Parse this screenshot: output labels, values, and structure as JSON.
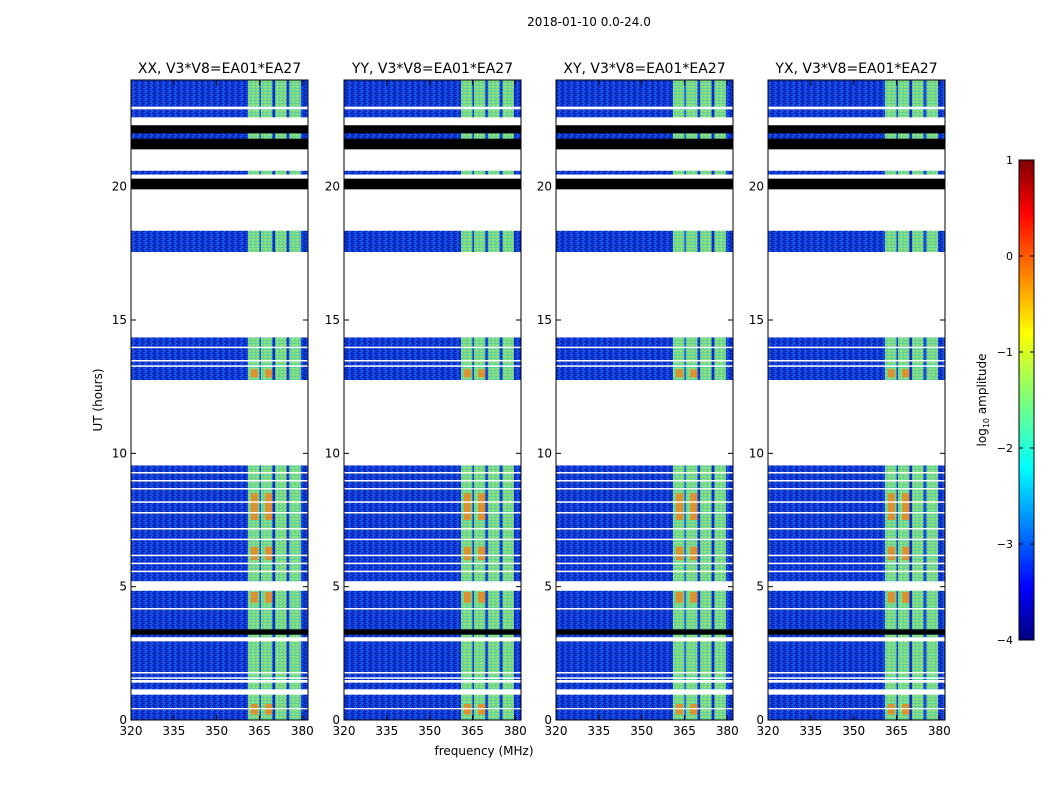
{
  "chart_data": {
    "type": "heatmap",
    "title": "2018-01-10 0.0-24.0",
    "xlabel": "frequency (MHz)",
    "ylabel": "UT (hours)",
    "xlim": [
      320,
      382
    ],
    "ylim": [
      0,
      24
    ],
    "xticks": [
      320,
      335,
      350,
      365,
      380
    ],
    "yticks": [
      0,
      5,
      10,
      15,
      20
    ],
    "panels": [
      {
        "title": "XX, V3*V8=EA01*EA27",
        "pol": "XX"
      },
      {
        "title": "YY, V3*V8=EA01*EA27",
        "pol": "YY"
      },
      {
        "title": "XY, V3*V8=EA01*EA27",
        "pol": "XY"
      },
      {
        "title": "YX, V3*V8=EA01*EA27",
        "pol": "YX"
      }
    ],
    "colorbar": {
      "label": "log10 amplitude",
      "label_base": "log",
      "label_sub": "10",
      "label_rest": " amplitude",
      "range": [
        -4,
        1
      ],
      "ticks": [
        1,
        0,
        -1,
        -2,
        -3,
        -4
      ],
      "colormap": "jet"
    },
    "data_blocks_ut_hours": [
      [
        0,
        3.0
      ],
      [
        3.1,
        4.85
      ],
      [
        5.2,
        9.55
      ],
      [
        12.75,
        14.35
      ],
      [
        17.55,
        18.35
      ],
      [
        20.45,
        20.6
      ],
      [
        21.45,
        24.0
      ]
    ],
    "flagged_black_ut_hours": [
      [
        3.2,
        3.4
      ],
      [
        19.9,
        20.3
      ],
      [
        21.4,
        21.8
      ],
      [
        22.0,
        22.3
      ]
    ],
    "white_gaps_ut_hours": [
      [
        0.4,
        0.45
      ],
      [
        0.95,
        1.15
      ],
      [
        1.4,
        1.5
      ],
      [
        2.95,
        3.1
      ],
      [
        4.85,
        5.2
      ],
      [
        9.55,
        12.75
      ],
      [
        14.35,
        17.55
      ],
      [
        18.35,
        19.9
      ],
      [
        20.3,
        20.45
      ],
      [
        20.6,
        21.4
      ],
      [
        22.3,
        22.6
      ],
      [
        22.9,
        23.0
      ]
    ],
    "rfi_bands_mhz": [
      [
        361,
        365,
        "bright"
      ],
      [
        365.5,
        369.5,
        "bright"
      ],
      [
        370.5,
        374.5,
        "bright"
      ],
      [
        375.5,
        379.5,
        "bright"
      ]
    ]
  },
  "colors": {
    "background": "#00008f",
    "low": "#0a3fd6",
    "mid": "#1ec7ff",
    "band": "#8ef07a",
    "hot": "#ff5a00",
    "flag": "#000000"
  }
}
